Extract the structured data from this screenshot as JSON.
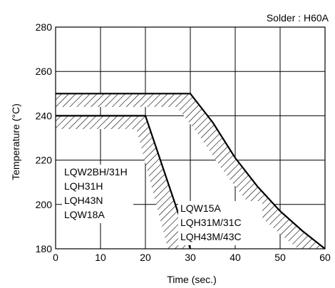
{
  "chart_data": {
    "type": "line",
    "title": "",
    "annotation": "Solder : H60A",
    "xlabel": "Time (sec.)",
    "ylabel": "Temperature (°C)",
    "xlim": [
      0,
      60
    ],
    "ylim": [
      180,
      280
    ],
    "x_ticks": [
      0,
      10,
      20,
      30,
      40,
      50,
      60
    ],
    "y_ticks": [
      180,
      200,
      220,
      240,
      260,
      280
    ],
    "grid": true,
    "hatch_pattern": "diagonal",
    "series": [
      {
        "labels": [
          "LQW2BH/31H",
          "LQH31H",
          "LQH43N",
          "LQW18A"
        ],
        "upper": [
          [
            0,
            240
          ],
          [
            20,
            240
          ],
          [
            30,
            180
          ]
        ],
        "lower": [
          [
            0,
            234
          ],
          [
            18,
            234
          ],
          [
            25,
            180
          ]
        ]
      },
      {
        "labels": [
          "LQW15A",
          "LQH31M/31C",
          "LQH43M/43C"
        ],
        "upper": [
          [
            0,
            250
          ],
          [
            30,
            250
          ],
          [
            35,
            237
          ],
          [
            40,
            221
          ],
          [
            45,
            208
          ],
          [
            50,
            197
          ],
          [
            55,
            188
          ],
          [
            60,
            180
          ]
        ],
        "lower": [
          [
            0,
            244
          ],
          [
            27,
            244
          ],
          [
            32,
            231
          ],
          [
            37,
            216
          ],
          [
            42,
            203
          ],
          [
            47,
            192
          ],
          [
            51,
            185
          ],
          [
            54,
            180
          ]
        ]
      }
    ]
  }
}
